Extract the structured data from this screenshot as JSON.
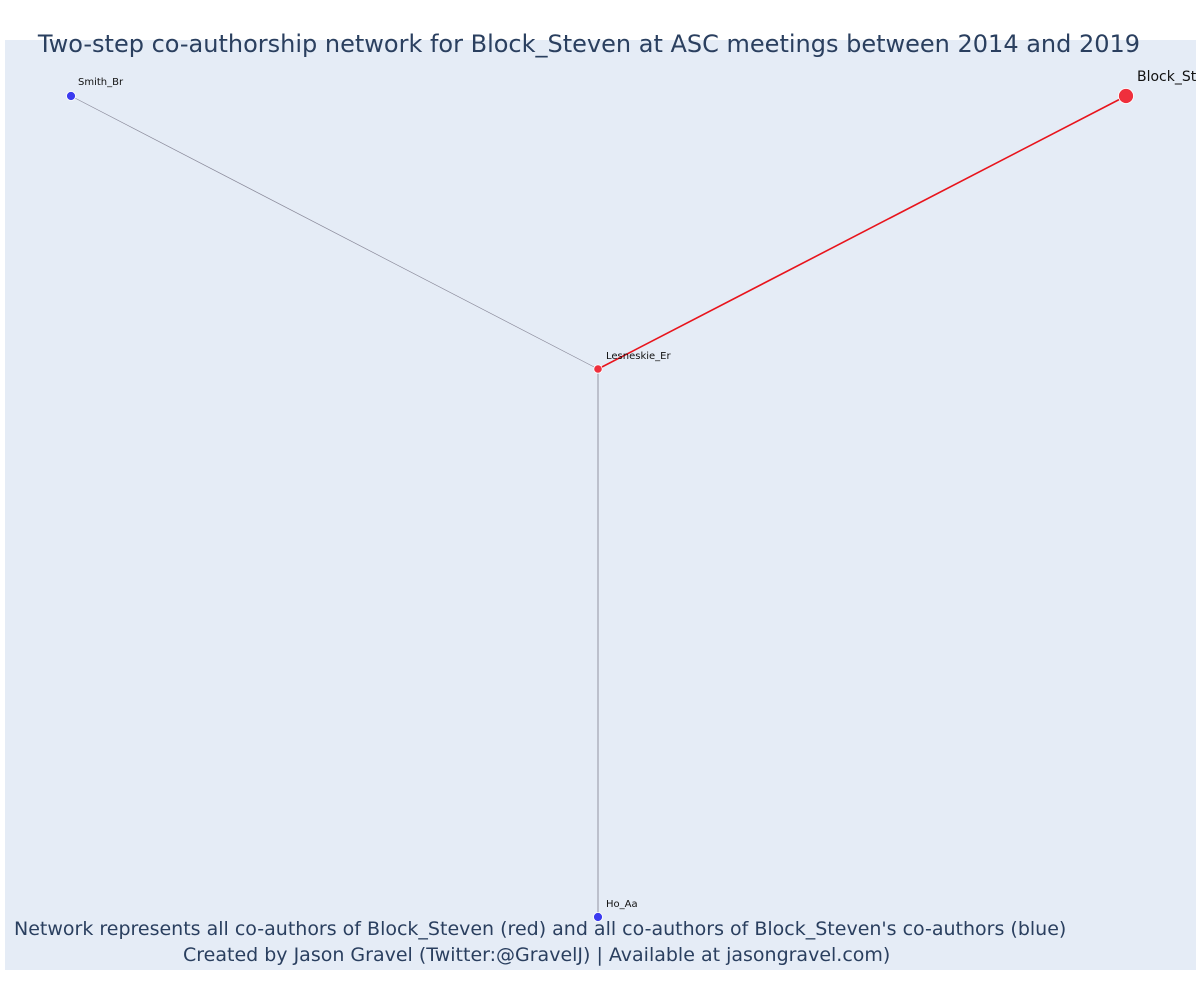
{
  "title": "Two-step co-authorship network for Block_Steven at ASC meetings between 2014 and 2019",
  "captions": {
    "line1": "Network represents all co-authors of Block_Steven (red) and all co-authors of Block_Steven's co-authors (blue)",
    "line2": "Created by Jason Gravel (Twitter:@GravelJ) | Available at jasongravel.com)"
  },
  "colors": {
    "plot_background": "#e5ecf6",
    "text": "#2a3f5f",
    "ego_and_coauthor_nodes": "#ef2f3c",
    "second_step_nodes": "#3b3bf0",
    "ego_edge": "#e8141c",
    "other_edges": "#8a8a9a"
  },
  "network": {
    "nodes": [
      {
        "id": "block",
        "label": "Block_St",
        "group": "ego"
      },
      {
        "id": "lesneskie",
        "label": "Lesneskie_Er",
        "group": "coauthor"
      },
      {
        "id": "smith",
        "label": "Smith_Br",
        "group": "second_step"
      },
      {
        "id": "ho",
        "label": "Ho_Aa",
        "group": "second_step"
      }
    ],
    "edges": [
      {
        "source": "block",
        "target": "lesneskie",
        "group": "ego"
      },
      {
        "source": "lesneskie",
        "target": "smith",
        "group": "other"
      },
      {
        "source": "lesneskie",
        "target": "ho",
        "group": "other"
      }
    ]
  }
}
